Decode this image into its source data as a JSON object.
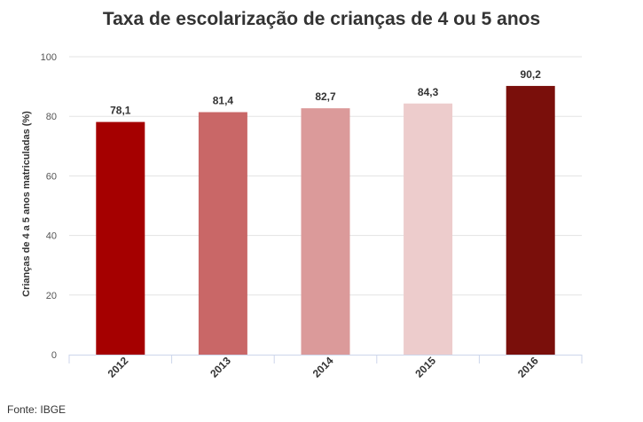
{
  "chart_data": {
    "type": "bar",
    "title": "Taxa de escolarização de crianças de 4 ou 5 anos",
    "xlabel": "",
    "ylabel": "Crianças de 4 a 5 anos matriculadas (%)",
    "categories": [
      "2012",
      "2013",
      "2014",
      "2015",
      "2016"
    ],
    "values": [
      78.1,
      81.4,
      82.7,
      84.3,
      90.2
    ],
    "value_labels": [
      "78,1",
      "81,4",
      "82,7",
      "84,3",
      "90,2"
    ],
    "colors": [
      "#a50000",
      "#c96767",
      "#db9a9a",
      "#edcccc",
      "#7a0f0b"
    ],
    "ylim": [
      0,
      100
    ],
    "yticks": [
      0,
      20,
      40,
      60,
      80,
      100
    ],
    "grid": true,
    "legend": "none"
  },
  "source": "Fonte: IBGE"
}
